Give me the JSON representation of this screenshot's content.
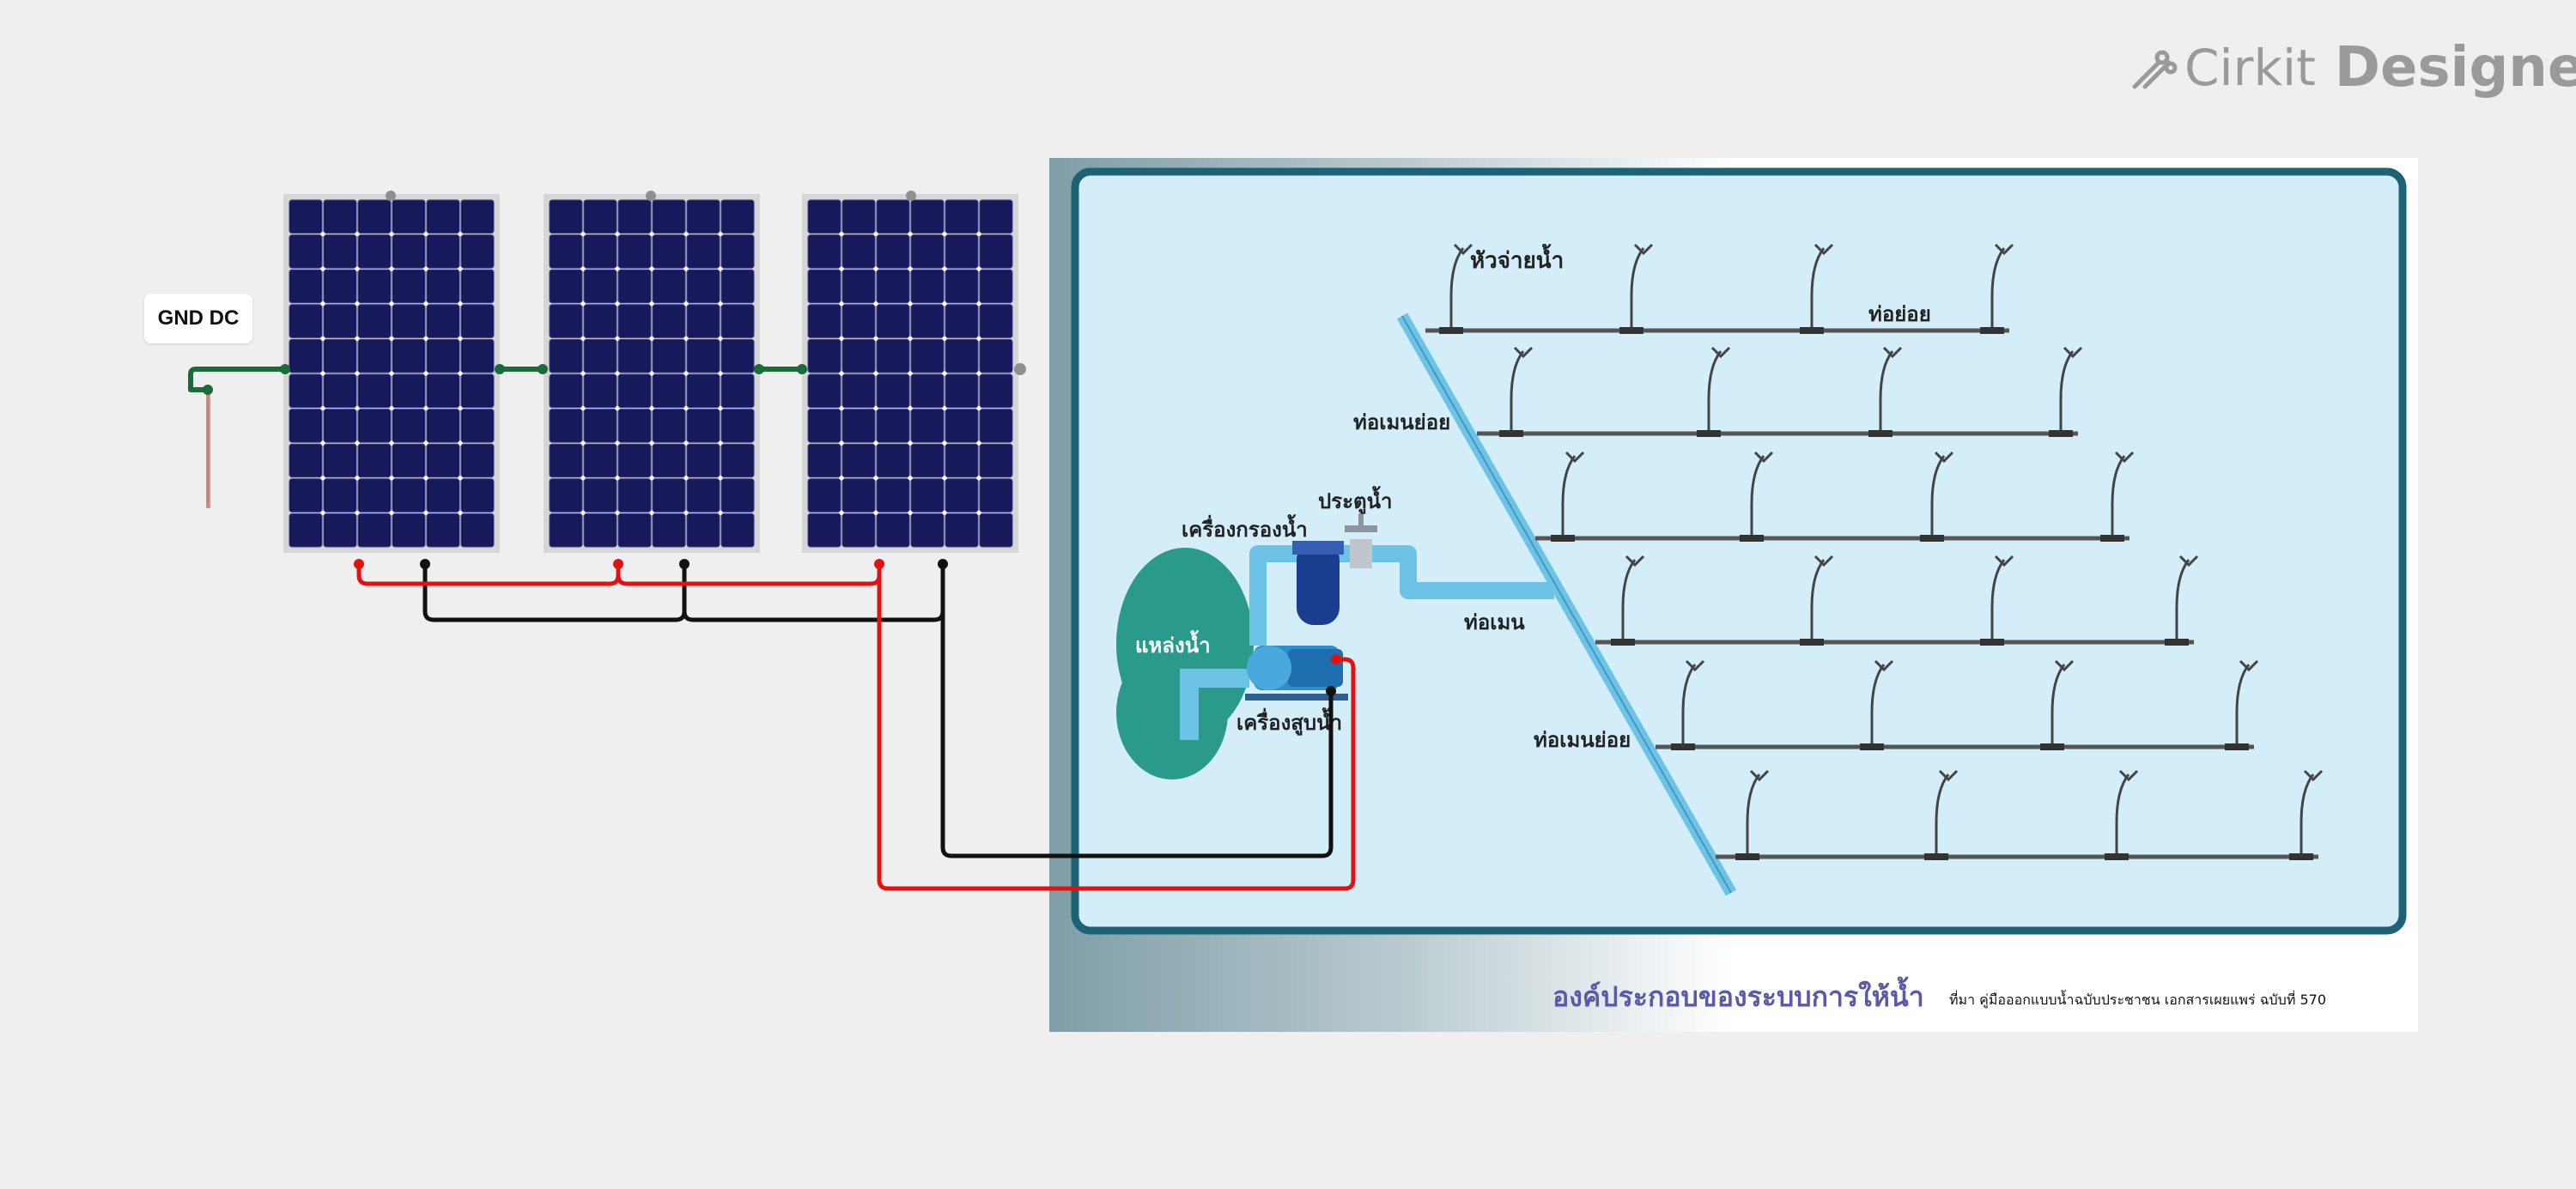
{
  "brand": {
    "part1": "Cirkit",
    "part2": "Designer",
    "color": "#9a9a9a"
  },
  "components": {
    "ground_label": "GND DC",
    "solar_panel_count": 3
  },
  "diagram": {
    "labels": {
      "sprinkler_head": "หัวจ่ายน้ำ",
      "lateral_pipe": "ท่อย่อย",
      "sub_main_top": "ท่อเมนย่อย",
      "valve": "ประตูน้ำ",
      "filter": "เครื่องกรองน้ำ",
      "water_source": "แหล่งน้ำ",
      "main_pipe": "ท่อเมน",
      "pump": "เครื่องสูบน้ำ",
      "sub_main_bottom": "ท่อเมนย่อย"
    },
    "caption": "องค์ประกอบของระบบการให้น้ำ",
    "source": "ที่มา คู่มือออกแบบน้ำฉบับประชาชน เอกสารเผยแพร่ ฉบับที่  570"
  },
  "colors": {
    "background": "#efefef",
    "panel_cell": "#18195a",
    "panel_frame": "#d6d6d6",
    "wire_positive": "#e3120f",
    "wire_negative": "#111111",
    "wire_ground": "#1a6b3a",
    "pipe": "#6cc3e6",
    "board_border": "#1d6275",
    "board_fill": "#d3eef9",
    "water_source": "#2a9a8a"
  }
}
